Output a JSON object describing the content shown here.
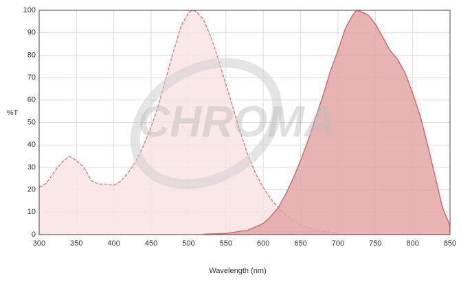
{
  "chart_data": {
    "type": "area",
    "watermark": "CHROMA",
    "x_label": "Wavelength (nm)",
    "y_label": "%T",
    "xlim": [
      300,
      850
    ],
    "xticks": [
      300,
      350,
      400,
      450,
      500,
      550,
      600,
      650,
      700,
      750,
      800,
      850
    ],
    "ylim": [
      0,
      100
    ],
    "yticks": [
      0,
      10,
      20,
      30,
      40,
      50,
      60,
      70,
      80,
      90,
      100
    ],
    "grid": true,
    "series": [
      {
        "color": "#d98585",
        "fill": "#f9e4e4",
        "style": "dashed",
        "x": [
          300,
          310,
          320,
          330,
          340,
          350,
          360,
          370,
          380,
          390,
          400,
          410,
          420,
          430,
          440,
          450,
          460,
          470,
          480,
          490,
          500,
          505,
          510,
          520,
          530,
          540,
          550,
          560,
          570,
          580,
          590,
          600,
          610,
          620,
          630,
          640,
          650,
          660,
          670,
          680,
          690,
          700
        ],
        "values": [
          21,
          23,
          28,
          32,
          35,
          33,
          30,
          24,
          22.5,
          22.5,
          22,
          24,
          28,
          33,
          40,
          48,
          58,
          70,
          82,
          93,
          99,
          100,
          99.5,
          96,
          88,
          78,
          67,
          56,
          45,
          35,
          27,
          21,
          16,
          12,
          9,
          6.5,
          4.5,
          3,
          2,
          1.5,
          1,
          0.8
        ]
      },
      {
        "color": "#cf6b6b",
        "fill": "#e3a6a6",
        "style": "solid",
        "x": [
          520,
          550,
          580,
          600,
          610,
          620,
          630,
          640,
          650,
          660,
          670,
          680,
          690,
          700,
          710,
          720,
          725,
          730,
          740,
          750,
          760,
          770,
          780,
          790,
          800,
          810,
          820,
          830,
          840,
          850
        ],
        "values": [
          0.2,
          0.5,
          2,
          5,
          8,
          12,
          18,
          25,
          33,
          42,
          52,
          62,
          73,
          82,
          92,
          98,
          100,
          99.5,
          98,
          94,
          88,
          82,
          78,
          72,
          63,
          53,
          40,
          26,
          12,
          4
        ]
      }
    ]
  }
}
